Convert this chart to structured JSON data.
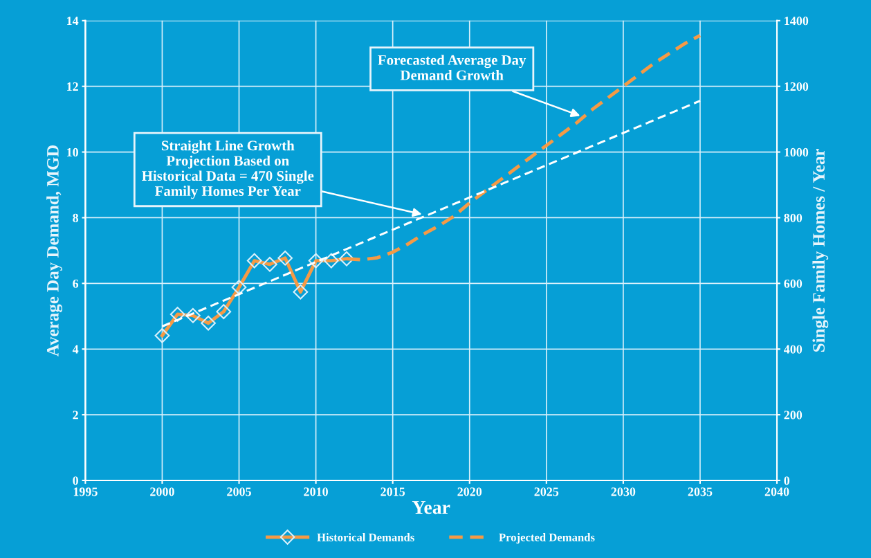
{
  "chart_data": {
    "type": "line",
    "xlabel": "Year",
    "ylabel": "Average Day Demand, MGD",
    "y2label": "Single Family Homes / Year",
    "xlim": [
      1995,
      2040
    ],
    "xticks": [
      1995,
      2000,
      2005,
      2010,
      2015,
      2020,
      2025,
      2030,
      2035,
      2040
    ],
    "ylim": [
      0,
      14
    ],
    "yticks": [
      0,
      2,
      4,
      6,
      8,
      10,
      12,
      14
    ],
    "y2lim": [
      0,
      1400
    ],
    "y2ticks": [
      0,
      200,
      400,
      600,
      800,
      1000,
      1200,
      1400
    ],
    "grid": true,
    "legend": "bottom",
    "series": [
      {
        "name": "Historical Demands",
        "color": "#f59a45",
        "marker": "diamond",
        "line_style": "solid",
        "x": [
          2000,
          2001,
          2002,
          2003,
          2004,
          2005,
          2006,
          2007,
          2008,
          2009,
          2010,
          2011,
          2012
        ],
        "values": [
          4.41,
          5.06,
          5.02,
          4.79,
          5.14,
          5.88,
          6.69,
          6.58,
          6.77,
          5.74,
          6.69,
          6.69,
          6.75
        ]
      },
      {
        "name": "Projected Demands",
        "color": "#f59a45",
        "marker": "none",
        "line_style": "dashed",
        "x": [
          2012,
          2013,
          2014,
          2015,
          2016,
          2017,
          2018,
          2019,
          2020,
          2021,
          2022,
          2023,
          2024,
          2025,
          2026,
          2027,
          2028,
          2029,
          2030,
          2031,
          2032,
          2033,
          2034,
          2035
        ],
        "values": [
          6.75,
          6.72,
          6.78,
          6.95,
          7.2,
          7.5,
          7.75,
          8.05,
          8.45,
          8.8,
          9.15,
          9.5,
          9.85,
          10.2,
          10.55,
          10.9,
          11.3,
          11.65,
          12.0,
          12.35,
          12.7,
          13.0,
          13.3,
          13.55
        ]
      },
      {
        "color": "#ffffff",
        "marker": "none",
        "line_style": "dashed",
        "x": [
          2000,
          2035
        ],
        "values": [
          4.69,
          11.56
        ]
      }
    ],
    "annotations": [
      {
        "text": "Forecasted Average Day\nDemand Growth",
        "x": 2027.2,
        "y": 11.1
      },
      {
        "text": "Straight Line Growth\nProjection Based on\nHistorical Data = 470 Single\nFamily Homes Per Year",
        "x": 2016.9,
        "y": 8.1
      }
    ]
  }
}
